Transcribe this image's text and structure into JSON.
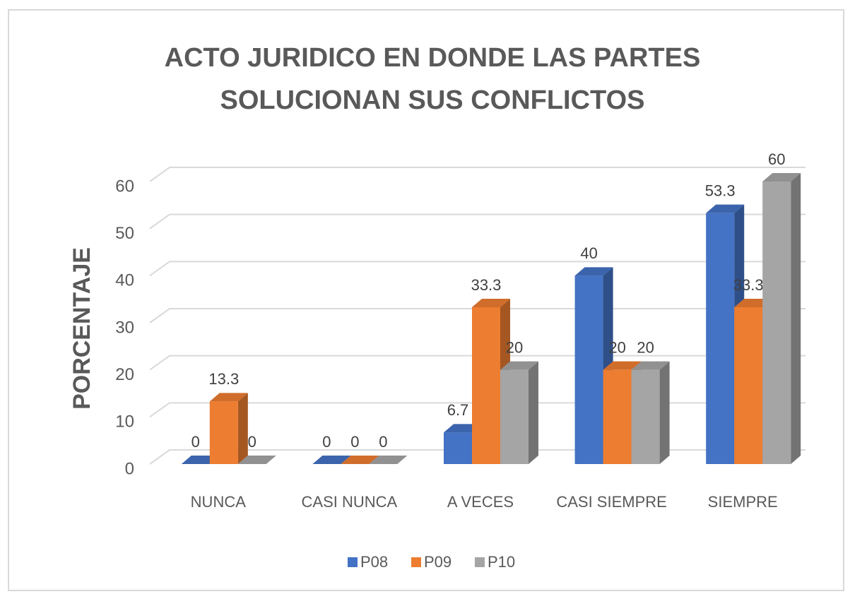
{
  "chart_data": {
    "type": "bar3d",
    "title": "ACTO JURIDICO EN DONDE LAS PARTES SOLUCIONAN SUS CONFLICTOS",
    "y_label": "PORCENTAJE",
    "categories": [
      "NUNCA",
      "CASI NUNCA",
      "A VECES",
      "CASI SIEMPRE",
      "SIEMPRE"
    ],
    "series": [
      {
        "name": "P08",
        "color": "#4472c4",
        "values": [
          0,
          0,
          6.7,
          40,
          53.3
        ]
      },
      {
        "name": "P09",
        "color": "#ed7d31",
        "values": [
          13.3,
          0,
          33.3,
          20,
          33.3
        ]
      },
      {
        "name": "P10",
        "color": "#a5a5a5",
        "values": [
          0,
          0,
          20,
          20,
          60
        ]
      }
    ],
    "ylim": [
      0,
      60
    ],
    "yticks": [
      0,
      10,
      20,
      30,
      40,
      50,
      60
    ],
    "grid": true,
    "legend": "bottom",
    "data_labels": true
  }
}
